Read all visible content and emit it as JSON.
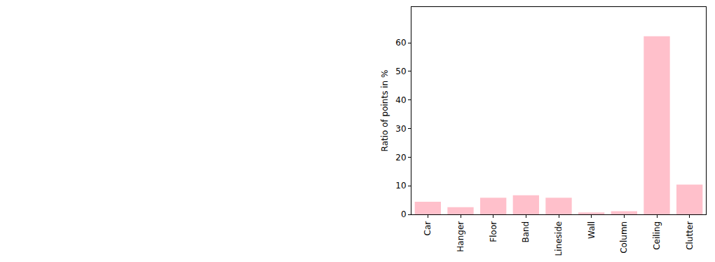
{
  "chart_data": {
    "type": "bar",
    "y_label": "Ratio of points in %",
    "categories": [
      "Car",
      "Hanger",
      "Floor",
      "Band",
      "Lineside",
      "Wall",
      "Column",
      "Ceiling",
      "Clutter"
    ],
    "values": [
      4.4,
      2.5,
      5.8,
      6.7,
      5.8,
      0.7,
      1.1,
      62.3,
      10.4
    ],
    "color": "#ffc0cb",
    "ylim": [
      0,
      72.5
    ],
    "yticks": [
      0,
      10,
      20,
      30,
      40,
      50,
      60
    ],
    "grid": false
  }
}
